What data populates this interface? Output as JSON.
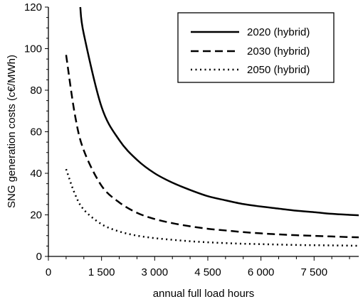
{
  "chart_data": {
    "type": "line",
    "xlabel": "annual full load hours",
    "ylabel": "SNG generation costs (c€/MWh)",
    "xlim": [
      0,
      8760
    ],
    "ylim": [
      0,
      120
    ],
    "xticks": [
      0,
      1500,
      3000,
      4500,
      6000,
      7500
    ],
    "xtick_labels": [
      "0",
      "1 500",
      "3 000",
      "4 500",
      "6 000",
      "7 500"
    ],
    "yticks": [
      0,
      20,
      40,
      60,
      80,
      100,
      120
    ],
    "ytick_labels": [
      "0",
      "20",
      "40",
      "60",
      "80",
      "100",
      "120"
    ],
    "grid": false,
    "legend_position": "top-right",
    "series": [
      {
        "name": "2020 (hybrid)",
        "style": "solid",
        "x": [
          900,
          1000,
          1500,
          2000,
          2500,
          3000,
          3500,
          4000,
          4500,
          5000,
          5500,
          6000,
          6500,
          7000,
          7500,
          8000,
          8500,
          8760
        ],
        "y": [
          120,
          107,
          72,
          56,
          46.5,
          40,
          35.5,
          32,
          29,
          27,
          25.2,
          24,
          23,
          22,
          21.3,
          20.5,
          20,
          19.8
        ]
      },
      {
        "name": "2030 (hybrid)",
        "style": "dashed",
        "x": [
          500,
          750,
          1000,
          1500,
          2000,
          2500,
          3000,
          3500,
          4000,
          4500,
          5000,
          5500,
          6000,
          6500,
          7000,
          7500,
          8000,
          8500,
          8760
        ],
        "y": [
          97,
          68,
          51,
          34,
          26,
          21,
          18,
          16,
          14.5,
          13.3,
          12.5,
          11.7,
          11.1,
          10.6,
          10.2,
          9.9,
          9.6,
          9.3,
          9.2
        ]
      },
      {
        "name": "2050 (hybrid)",
        "style": "dotted",
        "x": [
          500,
          750,
          1000,
          1500,
          2000,
          2500,
          3000,
          3500,
          4000,
          4500,
          5000,
          5500,
          6000,
          6500,
          7000,
          7500,
          8000,
          8500,
          8760
        ],
        "y": [
          42,
          30,
          22.5,
          15.5,
          12,
          10,
          8.8,
          8,
          7.3,
          6.8,
          6.4,
          6.1,
          5.9,
          5.7,
          5.5,
          5.4,
          5.3,
          5.2,
          5.1
        ]
      }
    ]
  }
}
